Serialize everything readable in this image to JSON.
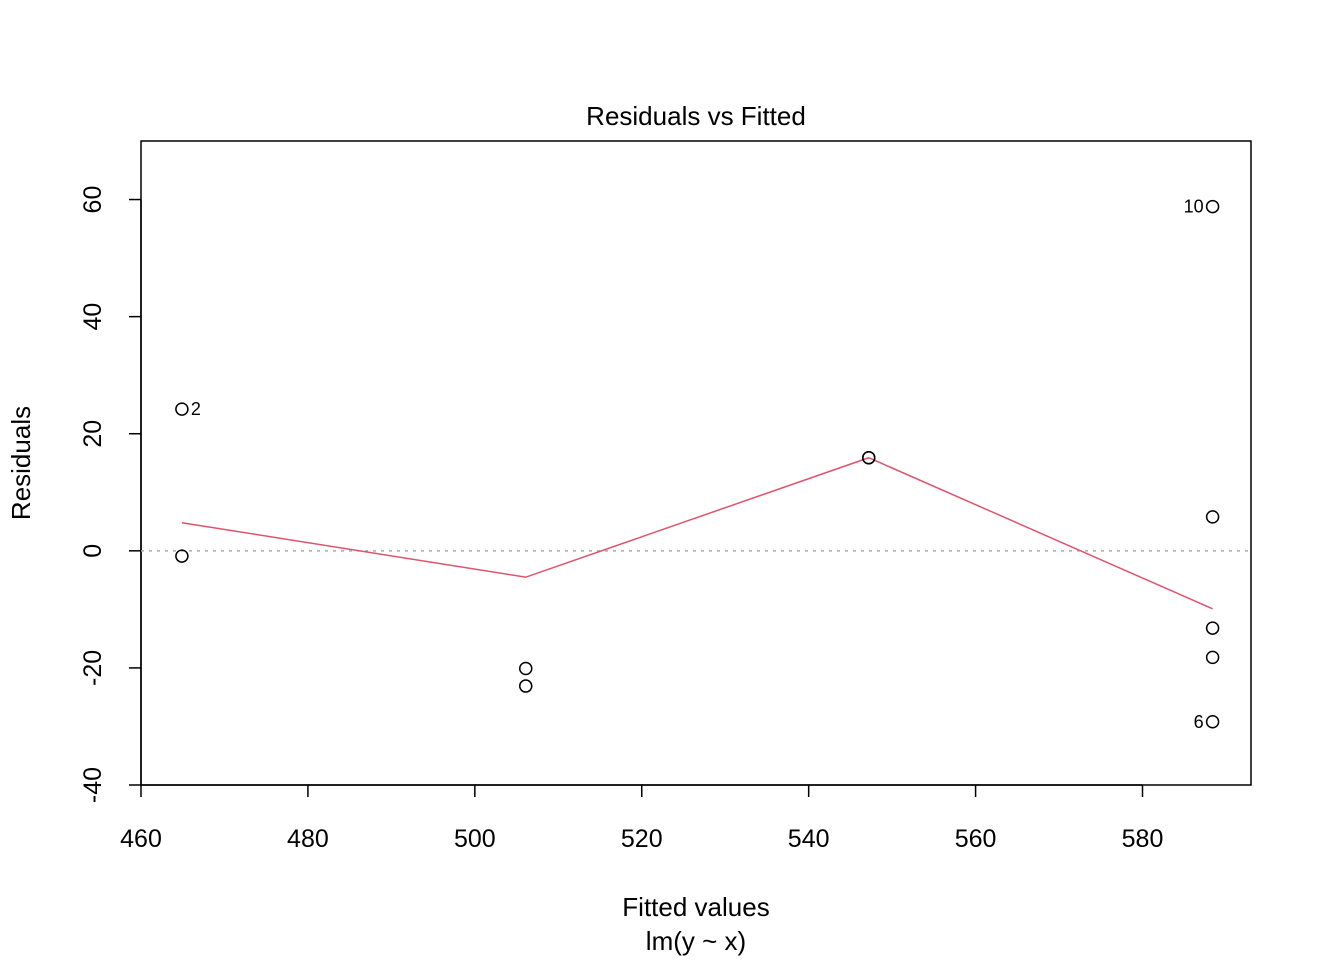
{
  "chart_data": {
    "type": "scatter",
    "title": "Residuals vs Fitted",
    "xlabel": "Fitted values",
    "subtitle": "lm(y ~ x)",
    "ylabel": "Residuals",
    "xlim": [
      460,
      593
    ],
    "ylim": [
      -40,
      70
    ],
    "xticks": [
      "460",
      "480",
      "500",
      "520",
      "540",
      "560",
      "580"
    ],
    "yticks": [
      "-40",
      "-20",
      "0",
      "20",
      "40",
      "60"
    ],
    "grid": false,
    "colors": {
      "points": "#000000",
      "smooth": "#DF536B",
      "zero_line": "#A9A9A9"
    },
    "points": [
      {
        "x": 464.9,
        "y": 24.2,
        "label": "2"
      },
      {
        "x": 464.9,
        "y": -0.9,
        "label": ""
      },
      {
        "x": 506.1,
        "y": -20.1,
        "label": ""
      },
      {
        "x": 506.1,
        "y": -23.1,
        "label": ""
      },
      {
        "x": 547.2,
        "y": 15.9,
        "label": ""
      },
      {
        "x": 547.2,
        "y": 15.9,
        "label": ""
      },
      {
        "x": 588.4,
        "y": 58.8,
        "label": "10"
      },
      {
        "x": 588.4,
        "y": 5.8,
        "label": ""
      },
      {
        "x": 588.4,
        "y": -13.2,
        "label": ""
      },
      {
        "x": 588.4,
        "y": -18.2,
        "label": ""
      },
      {
        "x": 588.4,
        "y": -29.2,
        "label": "6"
      }
    ],
    "smooth_line": [
      {
        "x": 464.9,
        "y": 4.8
      },
      {
        "x": 506.1,
        "y": -4.5
      },
      {
        "x": 547.2,
        "y": 15.9
      },
      {
        "x": 588.4,
        "y": -9.9
      }
    ],
    "reference_line_y": 0
  }
}
